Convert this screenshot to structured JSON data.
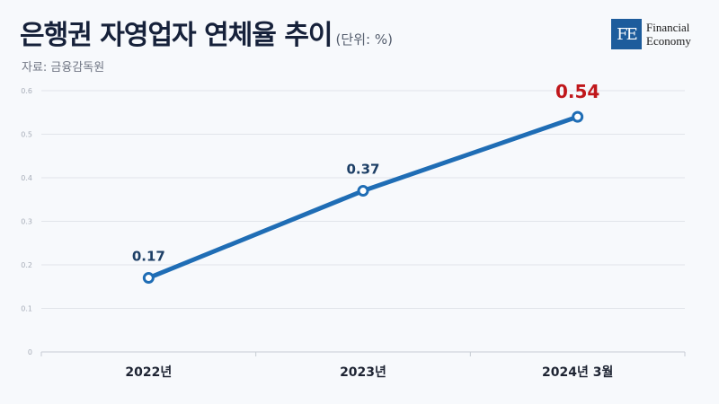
{
  "header": {
    "title": "은행권 자영업자 연체율 추이",
    "unit": "(단위: %)",
    "source": "자료: 금융감독원"
  },
  "logo": {
    "mark": "FE",
    "line1": "Financial",
    "line2": "Economy"
  },
  "colors": {
    "line": "#1f6db5",
    "label": "#1d3f66",
    "highlight": "#c0171b",
    "logo": "#1d5c9c"
  },
  "chart_data": {
    "type": "line",
    "categories": [
      "2022년",
      "2023년",
      "2024년 3월"
    ],
    "values": [
      0.17,
      0.37,
      0.54
    ],
    "data_labels": [
      "0.17",
      "0.37",
      "0.54"
    ],
    "highlight_index": 2,
    "ylim": [
      0,
      0.6
    ],
    "yticks": [
      "0",
      "0.1",
      "0.2",
      "0.3",
      "0.4",
      "0.5",
      "0.6"
    ],
    "grid": true
  }
}
